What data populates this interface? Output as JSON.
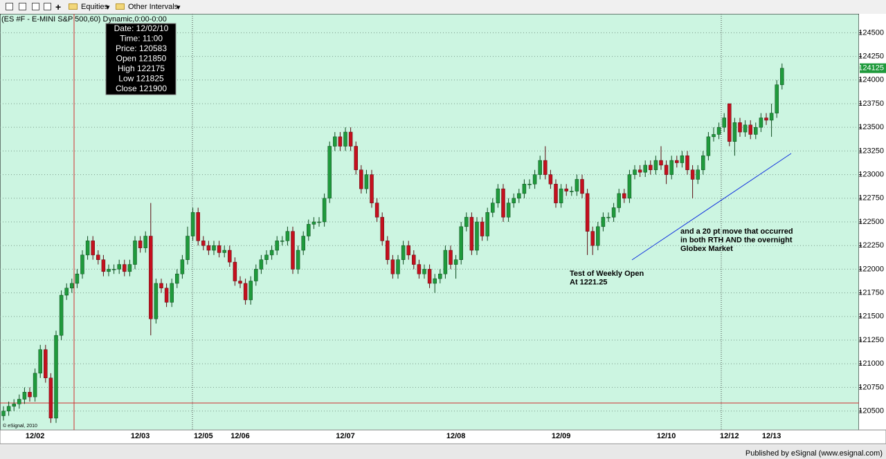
{
  "toolbar": {
    "equities": "Equities",
    "intervals": "Other Intervals"
  },
  "footer": "Published by eSignal (www.esignal.com)",
  "chart_data": {
    "type": "candlestick",
    "title": "(ES #F - E-MINI S&P 500,60) Dynamic,0:00-0:00",
    "watermark": "© eSignal, 2010",
    "categories": [
      null,
      null,
      null,
      null,
      null,
      null,
      "12/02",
      null,
      null,
      null,
      null,
      null,
      null,
      null,
      null,
      null,
      null,
      null,
      null,
      null,
      null,
      null,
      null,
      null,
      null,
      null,
      "12/03",
      null,
      null,
      null,
      null,
      null,
      null,
      null,
      null,
      null,
      null,
      null,
      "12/05",
      null,
      null,
      null,
      null,
      null,
      null,
      "12/06",
      null,
      null,
      null,
      null,
      null,
      null,
      null,
      null,
      null,
      null,
      null,
      null,
      null,
      null,
      null,
      null,
      null,
      null,
      null,
      "12/07",
      null,
      null,
      null,
      null,
      null,
      null,
      null,
      null,
      null,
      null,
      null,
      null,
      null,
      null,
      null,
      null,
      null,
      null,
      null,
      null,
      "12/08",
      null,
      null,
      null,
      null,
      null,
      null,
      null,
      null,
      null,
      null,
      null,
      null,
      null,
      null,
      null,
      null,
      null,
      null,
      null,
      "12/09",
      null,
      null,
      null,
      null,
      null,
      null,
      null,
      null,
      null,
      null,
      null,
      null,
      null,
      null,
      null,
      null,
      null,
      null,
      null,
      "12/10",
      null,
      null,
      null,
      null,
      null,
      null,
      null,
      null,
      null,
      null,
      null,
      "12/12",
      null,
      null,
      null,
      null,
      null,
      null,
      null,
      "12/13",
      null,
      null
    ],
    "open": [
      120450,
      120500,
      120550,
      120575,
      120625,
      120700,
      120650,
      120900,
      121150,
      120850,
      120425,
      121300,
      121725,
      121800,
      121850,
      121950,
      122150,
      122300,
      122150,
      122100,
      121975,
      122000,
      122000,
      122050,
      121975,
      122050,
      122300,
      122225,
      122350,
      121475,
      121850,
      121800,
      121650,
      121850,
      121950,
      122100,
      122350,
      122600,
      122300,
      122250,
      122200,
      122250,
      122175,
      122200,
      122075,
      121875,
      121850,
      121675,
      121875,
      122000,
      122100,
      122150,
      122200,
      122300,
      122300,
      122400,
      122000,
      122200,
      122350,
      122475,
      122500,
      122500,
      122750,
      123300,
      123400,
      123300,
      123450,
      123300,
      123050,
      122850,
      123000,
      122700,
      122550,
      122300,
      122100,
      121950,
      122100,
      122250,
      122150,
      122050,
      121950,
      122000,
      121850,
      121900,
      121950,
      122200,
      122050,
      122100,
      122450,
      122550,
      122200,
      122500,
      122350,
      122600,
      122700,
      122850,
      122550,
      122700,
      122750,
      122800,
      122900,
      122900,
      123000,
      123150,
      123000,
      122900,
      122700,
      122850,
      122825,
      122825,
      122950,
      122800,
      122400,
      122250,
      122450,
      122550,
      122550,
      122650,
      122800,
      122750,
      123000,
      123050,
      123025,
      123100,
      123050,
      123150,
      123100,
      123000,
      123150,
      123125,
      123200,
      123050,
      122950,
      123050,
      123200,
      123400,
      123425,
      123500,
      123750,
      123350,
      123550,
      123450,
      123525,
      123425,
      123500,
      123600,
      123575,
      123650,
      123950
    ],
    "high": [
      120550,
      120600,
      120625,
      120675,
      120750,
      120750,
      120950,
      121200,
      121200,
      120900,
      121350,
      121775,
      121850,
      121900,
      122000,
      122200,
      122350,
      122350,
      122200,
      122150,
      122050,
      122050,
      122100,
      122100,
      122100,
      122350,
      122350,
      122400,
      122700,
      121900,
      121900,
      121850,
      121900,
      122000,
      122150,
      122450,
      122650,
      122650,
      122350,
      122300,
      122300,
      122300,
      122250,
      122250,
      122125,
      121925,
      121900,
      121925,
      122050,
      122150,
      122200,
      122250,
      122350,
      122350,
      122450,
      122450,
      122250,
      122400,
      122525,
      122550,
      122550,
      122800,
      123350,
      123450,
      123450,
      123500,
      123500,
      123350,
      123100,
      123050,
      123050,
      122750,
      122600,
      122350,
      122150,
      122150,
      122300,
      122300,
      122200,
      122100,
      122050,
      122050,
      121950,
      122000,
      122250,
      122250,
      122150,
      122500,
      122600,
      122600,
      122550,
      122550,
      122650,
      122750,
      122900,
      122900,
      122750,
      122800,
      122850,
      122950,
      122950,
      123050,
      123200,
      123300,
      123050,
      122950,
      122900,
      122900,
      122875,
      123000,
      123000,
      122850,
      122450,
      122500,
      122600,
      122600,
      122700,
      122850,
      122850,
      123050,
      123100,
      123100,
      123150,
      123150,
      123200,
      123300,
      123150,
      123200,
      123200,
      123250,
      123250,
      123100,
      123100,
      123250,
      123450,
      123500,
      123550,
      123650,
      123750,
      123600,
      123600,
      123575,
      123575,
      123550,
      123650,
      123650,
      123750,
      124000,
      124175
    ],
    "low": [
      120400,
      120450,
      120500,
      120525,
      120575,
      120600,
      120600,
      120850,
      120800,
      120375,
      120375,
      121250,
      121675,
      121750,
      121800,
      121900,
      122100,
      122100,
      122050,
      121925,
      121925,
      121950,
      121950,
      121925,
      121925,
      122000,
      122175,
      122175,
      121300,
      121425,
      121750,
      121600,
      121600,
      121800,
      121900,
      122050,
      122300,
      122250,
      122200,
      122150,
      122150,
      122125,
      122125,
      122025,
      121825,
      121800,
      121625,
      121625,
      121825,
      121950,
      122050,
      122100,
      122150,
      122250,
      122250,
      121950,
      121950,
      122150,
      122300,
      122425,
      122450,
      122450,
      122700,
      123250,
      123250,
      123250,
      123250,
      123000,
      122800,
      122800,
      122650,
      122500,
      122250,
      122050,
      121900,
      121900,
      122050,
      122100,
      122000,
      121900,
      121900,
      121800,
      121750,
      121850,
      121900,
      122000,
      121900,
      122050,
      122400,
      122150,
      122150,
      122300,
      122300,
      122550,
      122650,
      122500,
      122500,
      122650,
      122700,
      122750,
      122850,
      122850,
      122950,
      122950,
      122850,
      122650,
      122650,
      122775,
      122775,
      122775,
      122750,
      122150,
      122150,
      122200,
      122400,
      122500,
      122500,
      122600,
      122700,
      122700,
      122950,
      122975,
      122975,
      123000,
      123000,
      123050,
      122900,
      122950,
      123075,
      123075,
      123000,
      122750,
      122900,
      123000,
      123150,
      123350,
      123375,
      123450,
      123300,
      123200,
      123400,
      123400,
      123375,
      123375,
      123450,
      123525,
      123400,
      123600,
      123900
    ],
    "close": [
      120500,
      120550,
      120575,
      120625,
      120700,
      120650,
      120900,
      121150,
      120850,
      120425,
      121300,
      121725,
      121800,
      121850,
      121950,
      122150,
      122300,
      122150,
      122100,
      121975,
      122000,
      122000,
      122050,
      121975,
      122050,
      122300,
      122225,
      122350,
      121475,
      121850,
      121800,
      121650,
      121850,
      121950,
      122100,
      122350,
      122600,
      122300,
      122250,
      122200,
      122250,
      122175,
      122200,
      122075,
      121875,
      121850,
      121675,
      121875,
      122000,
      122100,
      122150,
      122200,
      122300,
      122300,
      122400,
      122000,
      122200,
      122350,
      122475,
      122500,
      122500,
      122750,
      123300,
      123400,
      123300,
      123450,
      123300,
      123050,
      122850,
      123000,
      122700,
      122550,
      122300,
      122100,
      121950,
      122100,
      122250,
      122150,
      122050,
      121950,
      122000,
      121850,
      121900,
      121950,
      122200,
      122050,
      122100,
      122450,
      122550,
      122200,
      122500,
      122350,
      122600,
      122700,
      122850,
      122550,
      122700,
      122750,
      122800,
      122900,
      122900,
      123000,
      123150,
      123000,
      122900,
      122700,
      122850,
      122825,
      122825,
      122950,
      122800,
      122400,
      122250,
      122450,
      122550,
      122550,
      122650,
      122800,
      122750,
      123000,
      123050,
      123025,
      123100,
      123050,
      123150,
      123100,
      123000,
      123150,
      123125,
      123200,
      123050,
      122950,
      123050,
      123200,
      123400,
      123425,
      123500,
      123600,
      123350,
      123550,
      123450,
      123525,
      123425,
      123500,
      123600,
      123575,
      123650,
      123950,
      124125
    ],
    "up_color": "#1f9a3c",
    "down_color": "#c4101e",
    "ylim": [
      120300,
      124700
    ],
    "yticks": [
      120500,
      120750,
      121000,
      121250,
      121500,
      121750,
      122000,
      122250,
      122500,
      122750,
      123000,
      123250,
      123500,
      123750,
      124000,
      124250,
      124500
    ],
    "grid": true,
    "last_price": 124125,
    "cursor": [
      "Date: 12/02/10",
      "Time: 11:00",
      "Price: 120583",
      "Open 121850",
      "High 122175",
      "Low 121825",
      "Close 121900"
    ],
    "annotations": [
      [
        "Test of Weekly Open",
        "At 1221.25"
      ],
      [
        "and a 20 pt move that occurred",
        "in both RTH AND the overnight",
        "Globex Market"
      ]
    ]
  }
}
